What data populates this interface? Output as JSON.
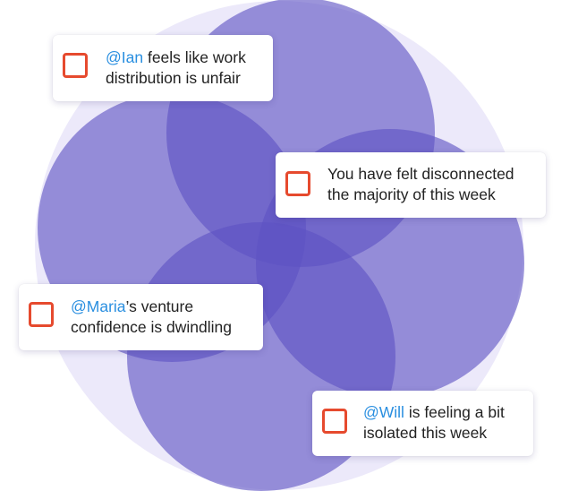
{
  "colors": {
    "halo": "#ece9fa",
    "petal": "#7a6fce",
    "mention": "#2a8fe0",
    "checkbox_border": "#e64a2e",
    "text": "#222222"
  },
  "cards": [
    {
      "id": "ian",
      "mention": "@Ian",
      "line1_rest": " feels like work",
      "line2": "distribution is unfair"
    },
    {
      "id": "you",
      "line1": "You have felt disconnected",
      "line2": "the majority of this week"
    },
    {
      "id": "maria",
      "mention": "@Maria",
      "line1_rest": "’s venture",
      "line2": "confidence is dwindling"
    },
    {
      "id": "will",
      "mention": "@Will",
      "line1_rest": " is feeling a bit",
      "line2": "isolated this week"
    }
  ]
}
